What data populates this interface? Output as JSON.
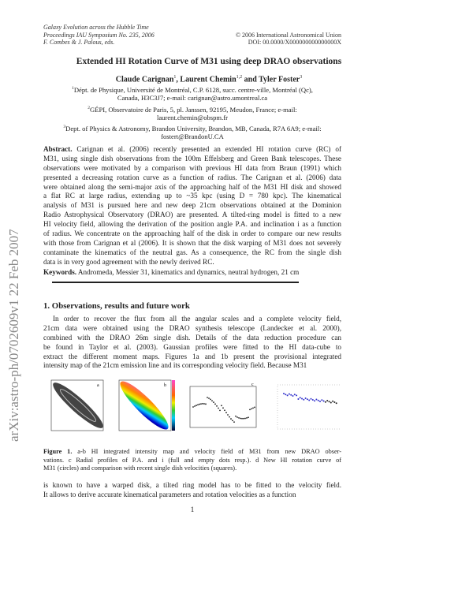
{
  "header": {
    "left": [
      "Galaxy Evolution across the Hubble Time",
      "Proceedings IAU Symposium No. 235, 2006",
      "F. Combes & J. Palous, eds."
    ],
    "right": [
      "© 2006 International Astronomical Union",
      "DOI: 00.0000/X000000000000000X"
    ]
  },
  "arxiv_stamp": "arXiv:astro-ph/0702609v1   22 Feb 2007",
  "title": "Extended HI Rotation Curve of M31 using deep DRAO observations",
  "authors": {
    "names": [
      "Claude Carignan",
      "Laurent Chemin",
      "and Tyler Foster"
    ],
    "sups": [
      "1",
      "1,2",
      "3"
    ]
  },
  "affiliations": [
    {
      "sup": "1",
      "lines": [
        "Dépt. de Physique, Université de Montréal, C.P. 6128, succ. centre-ville, Montréal (Qc),",
        "Canada, H3C3J7; e-mail: carignan@astro.umontreal.ca"
      ]
    },
    {
      "sup": "2",
      "lines": [
        "GÉPI, Observatoire de Paris, 5, pl. Janssen, 92195, Meudon, France; e-mail:",
        "laurent.chemin@obspm.fr"
      ]
    },
    {
      "sup": "3",
      "lines": [
        "Dept. of Physics & Astronomy, Brandon University, Brandon, MB, Canada, R7A 6A9; e-mail:",
        "fostert@BrandonU.CA"
      ]
    }
  ],
  "abstract": {
    "label": "Abstract.",
    "lines": [
      "Carignan et al. (2006) recently presented an extended HI rotation curve (RC) of",
      "M31, using single dish observations from the 100m Effelsberg and Green Bank telescopes. These",
      "observations were motivated by a comparison with previous HI data from Braun (1991) which",
      "presented a decreasing rotation curve as a function of radius. The Carignan et al. (2006) data",
      "were obtained along the semi-major axis of the approaching half of the M31 HI disk and showed",
      "a flat RC at large radius, extending up to ~35 kpc (using D = 780 kpc). The kinematical",
      "analysis of M31 is pursued here and new deep 21cm observations obtained at the Dominion",
      "Radio Astrophysical Observatory (DRAO) are presented. A tilted-ring model is fitted to a new",
      "HI velocity field, allowing the derivation of the position angle P.A. and inclination i as a function",
      "of radius. We concentrate on the approaching half of the disk in order to compare our new results",
      "with those from Carignan et al (2006). It is shown that the disk warping of M31 does not severely",
      "contaminate the kinematics of the neutral gas. As a consequence, the RC from the single dish",
      "data is in very good agreement with the newly derived RC."
    ]
  },
  "keywords": {
    "label": "Keywords.",
    "text": "Andromeda, Messier 31, kinematics and dynamics, neutral hydrogen, 21 cm"
  },
  "section": {
    "title": "1.  Observations, results and future work",
    "lines": [
      "In order to recover the flux from all the angular scales and a complete velocity field,",
      "21cm data were obtained using the DRAO synthesis telescope (Landecker et al. 2000),",
      "combined with the DRAO 26m single dish. Details of the data reduction procedure can",
      "be found in Taylor et al. (2003). Gaussian profiles were fitted to the HI data-cube to",
      "extract the different moment maps. Figures 1a and 1b present the provisional integrated",
      "intensity map of the 21cm emission line and its corresponding velocity field. Because M31"
    ]
  },
  "figure": {
    "panel_labels": [
      "a",
      "b",
      "c",
      "d"
    ],
    "caption": {
      "label": "Figure 1.",
      "lines": [
        "a-b HI integrated intensity map and velocity field of M31 from new DRAO obser-",
        "vations. c Radial profiles of P.A. and i (full and empty dots resp.). d New HI rotation curve of",
        "M31 (circles) and comparison with recent single dish velocities (squares)."
      ]
    }
  },
  "continuation": {
    "lines": [
      "is known to have a warped disk, a tilted ring model has to be fitted to the velocity field.",
      "It allows to derive accurate kinematical parameters and rotation velocities as a function"
    ]
  },
  "page_number": "1"
}
